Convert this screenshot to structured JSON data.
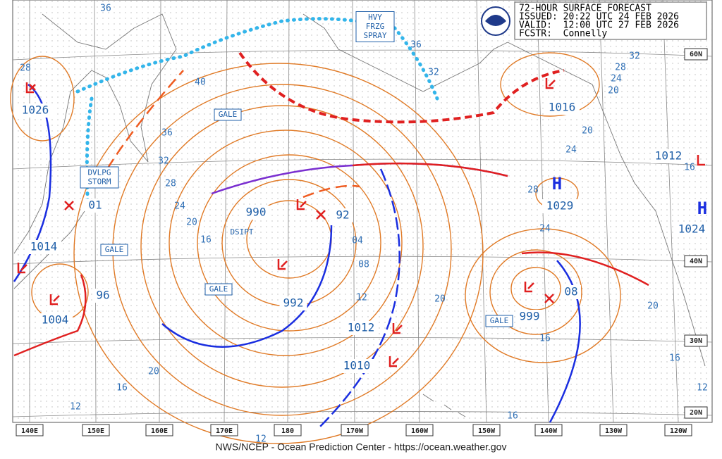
{
  "header": {
    "title": "72-HOUR SURFACE FORECAST",
    "issued": "ISSUED: 20:22 UTC 24 FEB 2026",
    "valid": "VALID:  12:00 UTC 27 FEB 2026",
    "forecaster": "FCSTR:  Connelly"
  },
  "footer": "NWS/NCEP - Ocean Prediction Center - https://ocean.weather.gov",
  "longitudes": [
    "140E",
    "150E",
    "160E",
    "170E",
    "180",
    "170W",
    "160W",
    "150W",
    "140W",
    "130W",
    "120W"
  ],
  "latitudes": [
    "60N",
    "40N",
    "30N",
    "20N"
  ],
  "hazards": [
    {
      "lines": [
        "HVY",
        "FRZG",
        "SPRAY"
      ]
    },
    {
      "lines": [
        "DVLPG",
        "STORM"
      ]
    }
  ],
  "gale_labels": [
    "GALE",
    "GALE",
    "GALE",
    "GALE"
  ],
  "dsipt": "DSIPT",
  "pressure_centers": [
    "1026",
    "01",
    "1014",
    "1004",
    "96",
    "990",
    "92",
    "992",
    "1012",
    "1010",
    "999",
    "08",
    "1016",
    "1029",
    "1024",
    "1012"
  ],
  "high_symbols": [
    "H",
    "H"
  ],
  "isobar_labels": [
    "36",
    "40",
    "36",
    "32",
    "28",
    "24",
    "20",
    "16",
    "04",
    "08",
    "12",
    "20",
    "16",
    "20",
    "16",
    "12",
    "12",
    "16",
    "20",
    "16",
    "12",
    "24",
    "28",
    "20",
    "24",
    "32",
    "28",
    "24",
    "20",
    "16",
    "36",
    "32",
    "28"
  ]
}
